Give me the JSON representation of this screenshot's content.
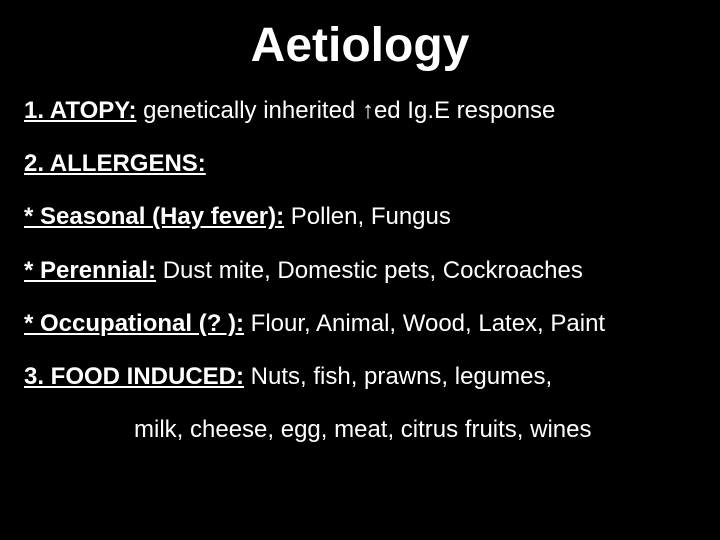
{
  "colors": {
    "background": "#000000",
    "text": "#ffffff"
  },
  "typography": {
    "title_fontsize": 48,
    "body_fontsize": 24,
    "title_weight": "bold"
  },
  "title": "Aetiology",
  "lines": {
    "atopy_label": "1. ATOPY:",
    "atopy_text_a": " genetically inherited ",
    "atopy_arrow": "↑",
    "atopy_text_b": "ed Ig.E response",
    "allergens_label": "2. ALLERGENS:",
    "seasonal_label": "* Seasonal (Hay fever):",
    "seasonal_text": " Pollen, Fungus",
    "perennial_label": "* Perennial:",
    "perennial_text": " Dust mite, Domestic pets, Cockroaches",
    "occupational_label": "* Occupational (? ):",
    "occupational_text": " Flour, Animal, Wood, Latex, Paint",
    "food_label": "3. FOOD INDUCED:",
    "food_text_a": " Nuts, fish, prawns, legumes,",
    "food_text_b": "milk, cheese, egg, meat, citrus fruits, wines"
  }
}
